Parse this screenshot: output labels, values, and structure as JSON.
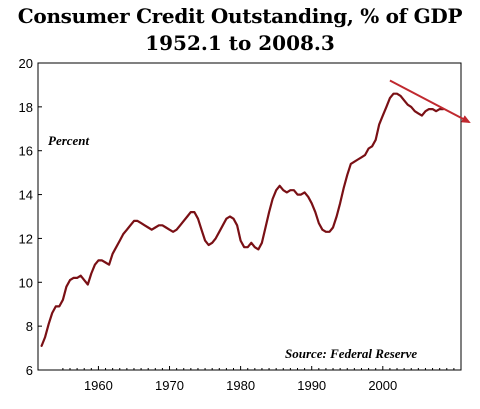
{
  "title": "Consumer Credit Outstanding, % of GDP",
  "subtitle": "1952.1 to 2008.3",
  "chart_data": {
    "type": "line",
    "title": "Consumer Credit Outstanding, % of GDP",
    "subtitle": "1952.1 to 2008.3",
    "ylabel": "Percent",
    "xlabel": "",
    "source": "Source: Federal Reserve",
    "xlim": [
      1951.5,
      2011
    ],
    "ylim": [
      6,
      20
    ],
    "x_ticks": [
      "1960",
      "1970",
      "1980",
      "1990",
      "2000"
    ],
    "y_ticks": [
      "6",
      "8",
      "10",
      "12",
      "14",
      "16",
      "18",
      "20"
    ],
    "grid": false,
    "line_color": "#7a1015",
    "arrow_color": "#c0292f",
    "series": [
      {
        "x": [
          1952.0,
          1952.5,
          1953.0,
          1953.5,
          1954.0,
          1954.5,
          1955.0,
          1955.5,
          1956.0,
          1956.5,
          1957.0,
          1957.5,
          1958.0,
          1958.5,
          1959.0,
          1959.5,
          1960.0,
          1960.5,
          1961.0,
          1961.5,
          1962.0,
          1962.5,
          1963.0,
          1963.5,
          1964.0,
          1964.5,
          1965.0,
          1965.5,
          1966.0,
          1966.5,
          1967.0,
          1967.5,
          1968.0,
          1968.5,
          1969.0,
          1969.5,
          1970.0,
          1970.5,
          1971.0,
          1971.5,
          1972.0,
          1972.5,
          1973.0,
          1973.5,
          1974.0,
          1974.5,
          1975.0,
          1975.5,
          1976.0,
          1976.5,
          1977.0,
          1977.5,
          1978.0,
          1978.5,
          1979.0,
          1979.5,
          1980.0,
          1980.5,
          1981.0,
          1981.5,
          1982.0,
          1982.5,
          1983.0,
          1983.5,
          1984.0,
          1984.5,
          1985.0,
          1985.5,
          1986.0,
          1986.5,
          1987.0,
          1987.5,
          1988.0,
          1988.5,
          1989.0,
          1989.5,
          1990.0,
          1990.5,
          1991.0,
          1991.5,
          1992.0,
          1992.5,
          1993.0,
          1993.5,
          1994.0,
          1994.5,
          1995.0,
          1995.5,
          1996.0,
          1996.5,
          1997.0,
          1997.5,
          1998.0,
          1998.5,
          1999.0,
          1999.5,
          2000.0,
          2000.5,
          2001.0,
          2001.5,
          2002.0,
          2002.5,
          2003.0,
          2003.5,
          2004.0,
          2004.5,
          2005.0,
          2005.5,
          2006.0,
          2006.5,
          2007.0,
          2007.5,
          2008.0,
          2008.5
        ],
        "y": [
          7.1,
          7.5,
          8.1,
          8.6,
          8.9,
          8.9,
          9.2,
          9.8,
          10.1,
          10.2,
          10.2,
          10.3,
          10.1,
          9.9,
          10.4,
          10.8,
          11.0,
          11.0,
          10.9,
          10.8,
          11.3,
          11.6,
          11.9,
          12.2,
          12.4,
          12.6,
          12.8,
          12.8,
          12.7,
          12.6,
          12.5,
          12.4,
          12.5,
          12.6,
          12.6,
          12.5,
          12.4,
          12.3,
          12.4,
          12.6,
          12.8,
          13.0,
          13.2,
          13.2,
          12.9,
          12.4,
          11.9,
          11.7,
          11.8,
          12.0,
          12.3,
          12.6,
          12.9,
          13.0,
          12.9,
          12.6,
          11.9,
          11.6,
          11.6,
          11.8,
          11.6,
          11.5,
          11.8,
          12.5,
          13.2,
          13.8,
          14.2,
          14.4,
          14.2,
          14.1,
          14.2,
          14.2,
          14.0,
          14.0,
          14.1,
          13.9,
          13.6,
          13.2,
          12.7,
          12.4,
          12.3,
          12.3,
          12.5,
          13.0,
          13.6,
          14.3,
          14.9,
          15.4,
          15.5,
          15.6,
          15.7,
          15.8,
          16.1,
          16.2,
          16.5,
          17.2,
          17.6,
          18.0,
          18.4,
          18.6,
          18.6,
          18.5,
          18.3,
          18.1,
          18.0,
          17.8,
          17.7,
          17.6,
          17.8,
          17.9,
          17.9,
          17.8,
          17.9,
          17.9
        ]
      }
    ],
    "trend_arrow": {
      "from": [
        2001.0,
        19.2
      ],
      "to": [
        2011.0,
        17.4
      ]
    }
  }
}
